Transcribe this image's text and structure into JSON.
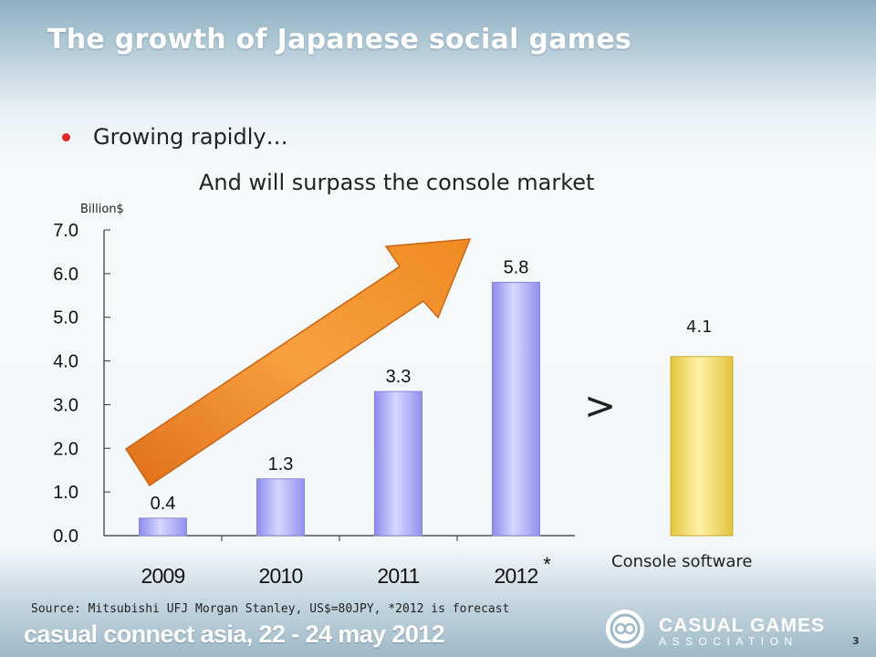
{
  "slide": {
    "title": "The growth of Japanese social games",
    "bullet": "Growing rapidly…",
    "subheading": "And will surpass the console market",
    "unit_label": "Billion$",
    "comparison_symbol": ">",
    "console_value_label": "4.1",
    "console_label": "Console software",
    "forecast_mark": "*",
    "source": "Source: Mitsubishi UFJ Morgan Stanley, US$=80JPY, *2012 is forecast",
    "footer_event": "casual connect asia, 22 - 24 may 2012",
    "logo_line1": "CASUAL GAMES",
    "logo_line2": "ASSOCIATION",
    "page_number": "3"
  },
  "colors": {
    "social_bar": "#a9a9f5",
    "console_bar": "#f6dc6a",
    "arrow": "#f2891f",
    "bullet_dot": "#e3262b"
  },
  "chart_data": {
    "type": "bar",
    "categories": [
      "2009",
      "2010",
      "2011",
      "2012"
    ],
    "values": [
      0.4,
      1.3,
      3.3,
      5.8
    ],
    "value_labels": [
      "0.4",
      "1.3",
      "3.3",
      "5.8"
    ],
    "ylim": [
      0,
      7
    ],
    "yticks": [
      "0.0",
      "1.0",
      "2.0",
      "3.0",
      "4.0",
      "5.0",
      "6.0",
      "7.0"
    ],
    "ylabel": "Billion$",
    "grid": false,
    "comparison": {
      "label": "Console software",
      "value": 4.1
    }
  }
}
